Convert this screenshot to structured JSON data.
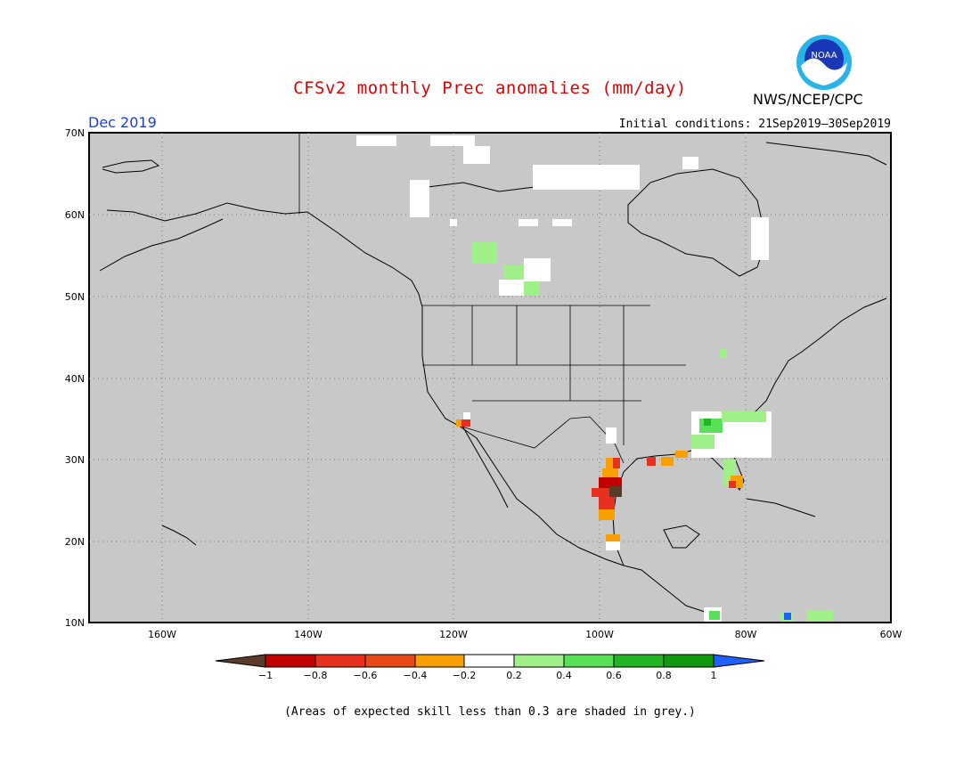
{
  "header": {
    "title": "CFSv2 monthly Prec anomalies (mm/day)",
    "agency": "NWS/NCEP/CPC",
    "valid_month": "Dec 2019",
    "initial_conditions": "Initial conditions: 21Sep2019–30Sep2019",
    "logo_text": "NOAA"
  },
  "map": {
    "lat_labels": [
      "70N",
      "60N",
      "50N",
      "40N",
      "30N",
      "20N",
      "10N"
    ],
    "lon_labels": [
      "160W",
      "140W",
      "120W",
      "100W",
      "80W",
      "60W"
    ],
    "background_color": "#c8c8c8",
    "grid_style": "dotted"
  },
  "colorbar": {
    "tick_labels": [
      "−1",
      "−0.8",
      "−0.6",
      "−0.4",
      "−0.2",
      "0.2",
      "0.4",
      "0.6",
      "0.8",
      "1"
    ],
    "colors": [
      "#5a3a28",
      "#c00000",
      "#e8301e",
      "#f8a000",
      "#ffffff",
      "#a0f08a",
      "#58e058",
      "#22b422",
      "#109810",
      "#2060ff"
    ]
  },
  "footnote": "(Areas of expected skill less than 0.3 are shaded in grey.)"
}
